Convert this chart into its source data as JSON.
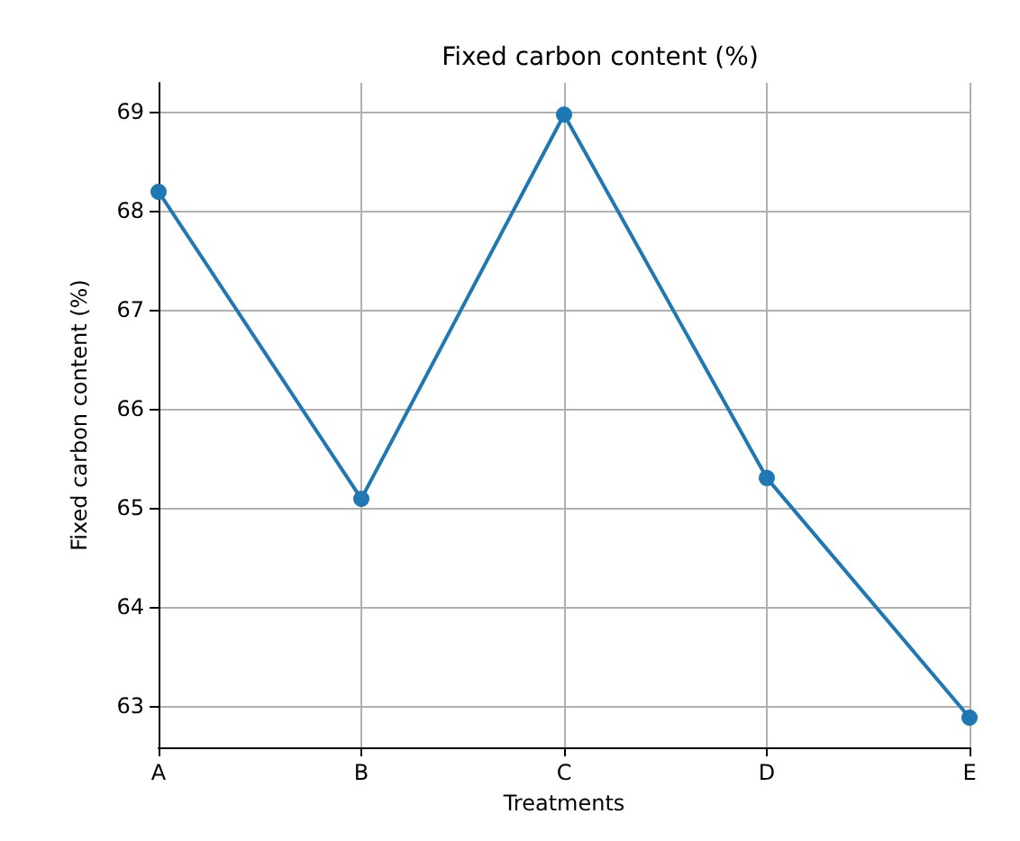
{
  "chart_data": {
    "type": "line",
    "title": "Fixed carbon content (%)",
    "xlabel": "Treatments",
    "ylabel": "Fixed carbon content (%)",
    "categories": [
      "A",
      "B",
      "C",
      "D",
      "E"
    ],
    "series": [
      {
        "color": "#1f77b4",
        "values": [
          68.19,
          65.09,
          68.97,
          65.3,
          62.88
        ]
      }
    ],
    "ylim": [
      62.58,
      69.29
    ],
    "yticks": [
      63,
      64,
      65,
      66,
      67,
      68,
      69
    ],
    "grid": true,
    "marker": "circle",
    "line_style": "solid"
  }
}
